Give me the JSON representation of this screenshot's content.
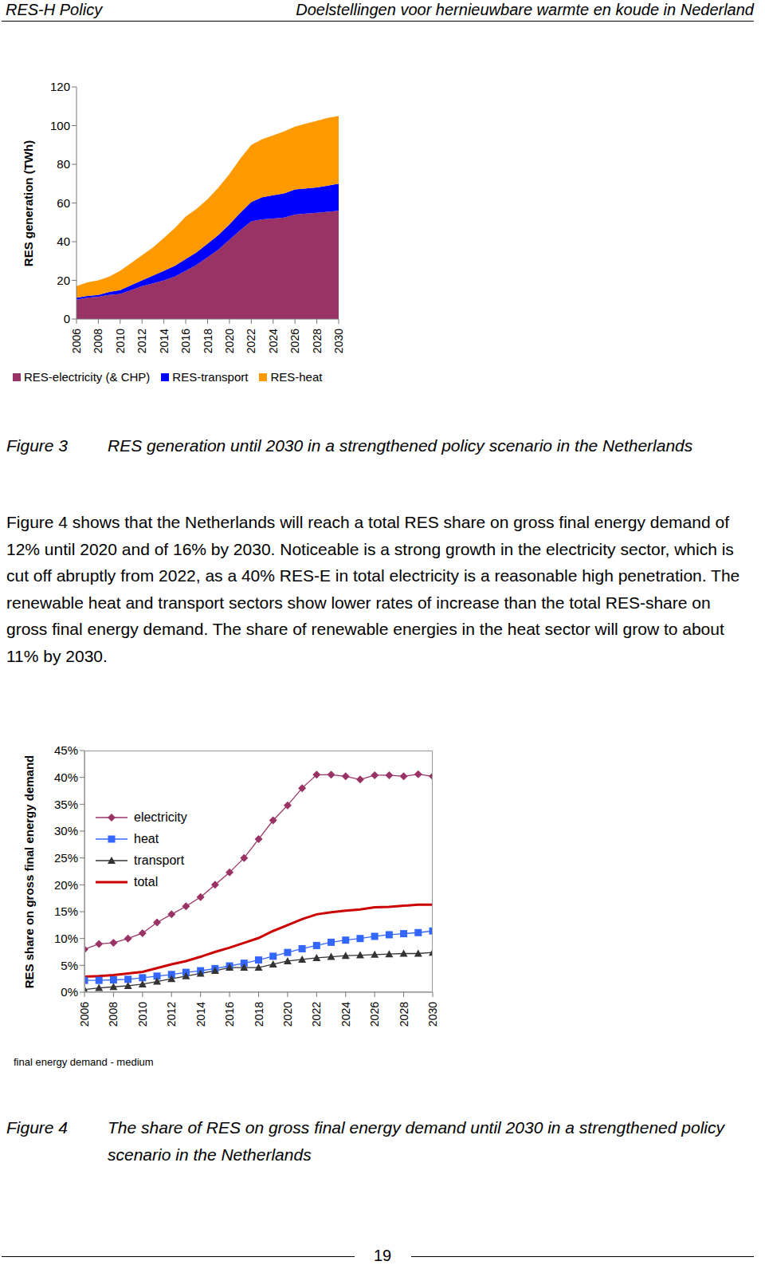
{
  "header": {
    "left": "RES-H Policy",
    "right": "Doelstellingen voor hernieuwbare warmte en koude in Nederland"
  },
  "chart_data": [
    {
      "type": "area",
      "stacked": true,
      "grid": false,
      "legend": "bottom",
      "y_label": "RES generation (TWh)",
      "x": [
        2006,
        2007,
        2008,
        2009,
        2010,
        2011,
        2012,
        2013,
        2014,
        2015,
        2016,
        2017,
        2018,
        2019,
        2020,
        2021,
        2022,
        2023,
        2024,
        2025,
        2026,
        2027,
        2028,
        2029,
        2030
      ],
      "xlim": [
        2006,
        2030
      ],
      "xticks": [
        2006,
        2008,
        2010,
        2012,
        2014,
        2016,
        2018,
        2020,
        2022,
        2024,
        2026,
        2028,
        2030
      ],
      "ylim": [
        0,
        120
      ],
      "yticks": [
        0,
        20,
        40,
        60,
        80,
        100,
        120
      ],
      "series": [
        {
          "name": "RES-electricity (& CHP)",
          "color": "#993366",
          "values": [
            10,
            11,
            11.5,
            12.5,
            13,
            15,
            17,
            18.5,
            20,
            22,
            25,
            28,
            32,
            36,
            41,
            46,
            50.5,
            51.5,
            52,
            52.5,
            54,
            54.5,
            55,
            55.5,
            56
          ]
        },
        {
          "name": "RES-transport",
          "color": "#0000ff",
          "values": [
            1,
            1,
            1,
            1.5,
            2,
            2.5,
            3,
            4,
            5,
            5.5,
            6,
            6.5,
            7,
            7.5,
            8,
            9,
            10,
            11.5,
            12,
            12.5,
            13,
            13,
            13,
            13.5,
            14
          ]
        },
        {
          "name": "RES-heat",
          "color": "#ff9900",
          "values": [
            6,
            7,
            7.5,
            8,
            10,
            11.5,
            13,
            14.5,
            17,
            19.5,
            22,
            22.5,
            23,
            24.5,
            26,
            28,
            29.5,
            30,
            31,
            32,
            32.5,
            33.5,
            34.5,
            35,
            35
          ]
        }
      ]
    },
    {
      "type": "line",
      "grid": false,
      "legend": "upper left",
      "y_label": "RES share on gross final energy demand",
      "annotations": [
        "final energy demand - medium"
      ],
      "x": [
        2006,
        2007,
        2008,
        2009,
        2010,
        2011,
        2012,
        2013,
        2014,
        2015,
        2016,
        2017,
        2018,
        2019,
        2020,
        2021,
        2022,
        2023,
        2024,
        2025,
        2026,
        2027,
        2028,
        2029,
        2030
      ],
      "xlim": [
        2006,
        2030
      ],
      "xticks": [
        2006,
        2008,
        2010,
        2012,
        2014,
        2016,
        2018,
        2020,
        2022,
        2024,
        2026,
        2028,
        2030
      ],
      "ylim": [
        0,
        45
      ],
      "yticks": [
        {
          "value": 0,
          "label": "0%"
        },
        {
          "value": 5,
          "label": "5%"
        },
        {
          "value": 10,
          "label": "10%"
        },
        {
          "value": 15,
          "label": "15%"
        },
        {
          "value": 20,
          "label": "20%"
        },
        {
          "value": 25,
          "label": "25%"
        },
        {
          "value": 30,
          "label": "30%"
        },
        {
          "value": 35,
          "label": "35%"
        },
        {
          "value": 40,
          "label": "40%"
        },
        {
          "value": 45,
          "label": "45%"
        }
      ],
      "series": [
        {
          "name": "electricity",
          "color": "#993366",
          "marker": "diamond",
          "values": [
            8,
            9,
            9.2,
            10,
            11,
            13,
            14.5,
            16,
            17.7,
            20,
            22.3,
            25,
            28.5,
            32,
            34.8,
            38,
            40.5,
            40.5,
            40.2,
            39.6,
            40.4,
            40.4,
            40.2,
            40.6,
            40.2
          ]
        },
        {
          "name": "heat",
          "color": "#3366ff",
          "marker": "square",
          "values": [
            2.2,
            2.2,
            2.3,
            2.4,
            2.7,
            3.0,
            3.3,
            3.7,
            4.0,
            4.4,
            4.9,
            5.4,
            6.0,
            6.7,
            7.4,
            8.1,
            8.7,
            9.3,
            9.7,
            10.0,
            10.4,
            10.7,
            10.9,
            11.1,
            11.4
          ]
        },
        {
          "name": "transport",
          "color": "#333333",
          "marker": "triangle",
          "values": [
            0.5,
            0.8,
            1.0,
            1.2,
            1.5,
            2.0,
            2.5,
            3.0,
            3.5,
            4.0,
            4.6,
            4.6,
            4.6,
            5.2,
            5.8,
            6.1,
            6.4,
            6.6,
            6.8,
            6.9,
            7.0,
            7.1,
            7.2,
            7.2,
            7.4
          ]
        },
        {
          "name": "total",
          "color": "#cc0000",
          "marker": "none",
          "values": [
            2.9,
            3.0,
            3.2,
            3.5,
            3.8,
            4.5,
            5.2,
            5.8,
            6.6,
            7.5,
            8.3,
            9.2,
            10.1,
            11.4,
            12.5,
            13.6,
            14.5,
            14.9,
            15.2,
            15.4,
            15.8,
            15.9,
            16.1,
            16.3,
            16.3
          ]
        }
      ]
    }
  ],
  "captions": [
    {
      "label": "Figure 3",
      "text": "RES generation until 2030 in a strengthened policy scenario in the Netherlands"
    },
    {
      "label": "Figure 4",
      "text": "The share of RES on gross final energy demand until 2030 in a strengthened policy scenario in the Netherlands"
    }
  ],
  "body": "Figure 4 shows that the Netherlands will reach a total RES share on gross final energy demand of 12% until 2020 and of 16% by 2030. Noticeable is a strong growth in the electricity sector, which is cut off abruptly from 2022, as a 40% RES-E in total electricity is a reasonable high penetration. The renewable heat and transport sectors show lower rates of increase than the total RES-share on gross final energy demand. The share of renewable energies in the heat sector will grow to about 11% by 2030.",
  "footer": {
    "page": "19"
  }
}
